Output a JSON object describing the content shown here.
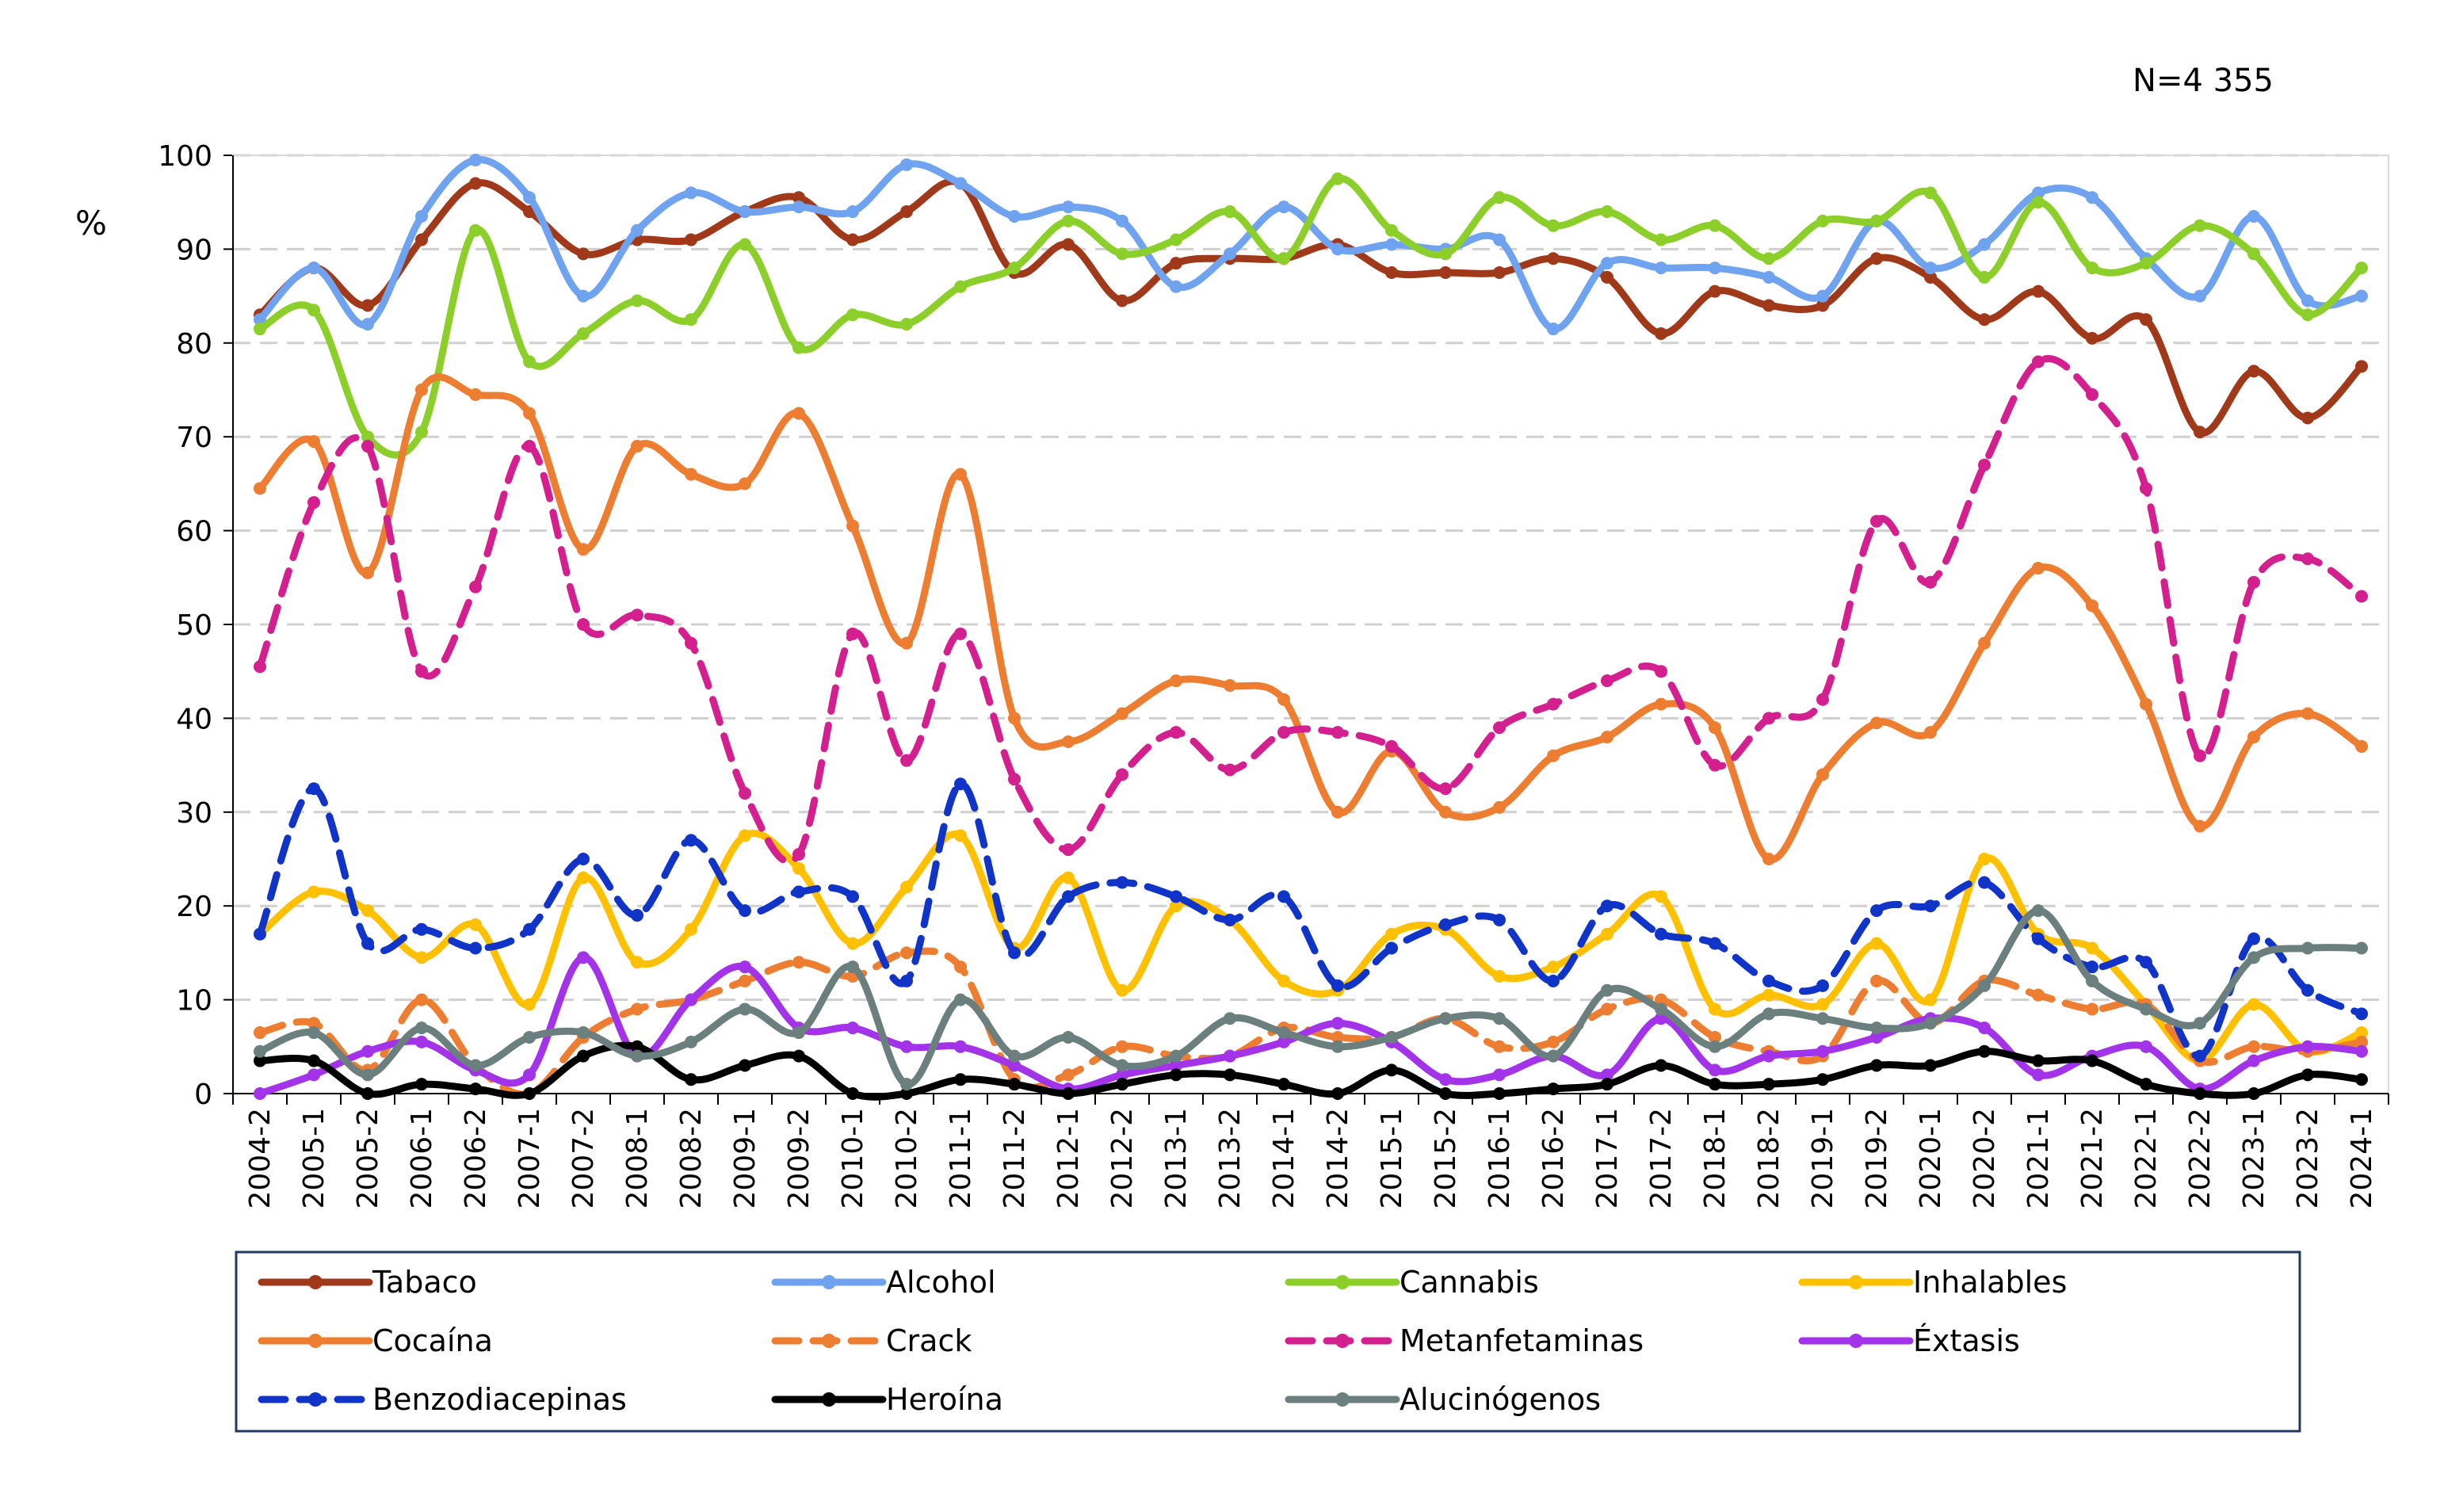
{
  "chart_data": {
    "type": "line",
    "annotation": "N=4 355",
    "ylabel": "%",
    "ylim": [
      0,
      100
    ],
    "yticks": [
      0,
      10,
      20,
      30,
      40,
      50,
      60,
      70,
      80,
      90,
      100
    ],
    "grid": true,
    "legend_position": "bottom",
    "categories": [
      "2004-2",
      "2005-1",
      "2005-2",
      "2006-1",
      "2006-2",
      "2007-1",
      "2007-2",
      "2008-1",
      "2008-2",
      "2009-1",
      "2009-2",
      "2010-1",
      "2010-2",
      "2011-1",
      "2011-2",
      "2012-1",
      "2012-2",
      "2013-1",
      "2013-2",
      "2014-1",
      "2014-2",
      "2015-1",
      "2015-2",
      "2016-1",
      "2016-2",
      "2017-1",
      "2017-2",
      "2018-1",
      "2018-2",
      "2019-1",
      "2019-2",
      "2020-1",
      "2020-2",
      "2021-1",
      "2021-2",
      "2022-1",
      "2022-2",
      "2023-1",
      "2023-2",
      "2024-1"
    ],
    "series": [
      {
        "name": "Tabaco",
        "color": "#a0391a",
        "dash": "solid",
        "values": [
          83,
          88,
          84,
          91,
          97,
          94,
          89.5,
          91,
          91,
          94,
          95.5,
          91,
          94,
          97,
          87.5,
          90.5,
          84.5,
          88.5,
          89,
          89,
          90.5,
          87.5,
          87.5,
          87.5,
          89,
          87,
          81,
          85.5,
          84,
          84,
          89,
          87,
          82.5,
          85.5,
          80.5,
          82.5,
          70.5,
          77,
          72,
          77.5
        ]
      },
      {
        "name": "Alcohol",
        "color": "#6fa3ef",
        "dash": "solid",
        "values": [
          82.5,
          88,
          82,
          93.5,
          99.5,
          95.5,
          85,
          92,
          96,
          94,
          94.5,
          94,
          99,
          97,
          93.5,
          94.5,
          93,
          86,
          89.5,
          94.5,
          90,
          90.5,
          90,
          91,
          81.5,
          88.5,
          88,
          88,
          87,
          85,
          93,
          88,
          90.5,
          96,
          95.5,
          89,
          85,
          93.5,
          84.5,
          85
        ]
      },
      {
        "name": "Cannabis",
        "color": "#8ccf2a",
        "dash": "solid",
        "values": [
          81.5,
          83.5,
          70,
          70.5,
          92,
          78,
          81,
          84.5,
          82.5,
          90.5,
          79.5,
          83,
          82,
          86,
          88,
          93,
          89.5,
          91,
          94,
          89,
          97.5,
          92,
          89.5,
          95.5,
          92.5,
          94,
          91,
          92.5,
          89,
          93,
          93,
          96,
          87,
          95,
          88,
          88.5,
          92.5,
          89.5,
          83,
          88
        ]
      },
      {
        "name": "Inhalables",
        "color": "#ffc000",
        "dash": "solid",
        "values": [
          17,
          21.5,
          19.5,
          14.5,
          18,
          9.5,
          23,
          14,
          17.5,
          27.5,
          24,
          16,
          22,
          27.5,
          15.5,
          23,
          11,
          20,
          18.5,
          12,
          11,
          17,
          17.5,
          12.5,
          13.5,
          17,
          21,
          9,
          10.5,
          9.5,
          16,
          10,
          25,
          17,
          15.5,
          9.5,
          3.5,
          9.5,
          4.5,
          6.5
        ]
      },
      {
        "name": "Cocaína",
        "color": "#ed7d31",
        "dash": "solid",
        "values": [
          64.5,
          69.5,
          55.5,
          75,
          74.5,
          72.5,
          58,
          69,
          66,
          65,
          72.5,
          60.5,
          48,
          66,
          40,
          37.5,
          40.5,
          44,
          43.5,
          42,
          30,
          36.5,
          30,
          30.5,
          36,
          38,
          41.5,
          39,
          25,
          34,
          39.5,
          38.5,
          48,
          56,
          52,
          41.5,
          28.5,
          38,
          40.5,
          37
        ]
      },
      {
        "name": "Crack",
        "color": "#ed7d31",
        "dash": "dashed",
        "values": [
          6.5,
          7.5,
          2.5,
          10,
          3,
          0,
          6,
          9,
          10,
          12,
          14,
          12.5,
          15,
          13.5,
          1.5,
          2,
          5,
          4,
          4,
          7,
          6,
          6,
          8,
          5,
          5.5,
          9,
          10,
          6,
          4.5,
          4,
          12,
          7.5,
          12,
          10.5,
          9,
          9.5,
          3.5,
          5,
          4.5,
          5.5
        ]
      },
      {
        "name": "Metanfetaminas",
        "color": "#d4208f",
        "dash": "dashed",
        "values": [
          45.5,
          63,
          69,
          45,
          54,
          69,
          50,
          51,
          48,
          32,
          25.5,
          49,
          35.5,
          49,
          33.5,
          26,
          34,
          38.5,
          34.5,
          38.5,
          38.5,
          37,
          32.5,
          39,
          41.5,
          44,
          45,
          35,
          40,
          42,
          61,
          54.5,
          67,
          78,
          74.5,
          64.5,
          36,
          54.5,
          57,
          53
        ]
      },
      {
        "name": "Éxtasis",
        "color": "#a233e8",
        "dash": "solid",
        "values": [
          0,
          2,
          4.5,
          5.5,
          2.5,
          2,
          14.5,
          4,
          10,
          13.5,
          7,
          7,
          5,
          5,
          3,
          0.5,
          2,
          3,
          4,
          5.5,
          7.5,
          5.5,
          1.5,
          2,
          4,
          2,
          8,
          2.5,
          4,
          4.5,
          6,
          8,
          7,
          2,
          4,
          5,
          0.5,
          3.5,
          5,
          4.5
        ]
      },
      {
        "name": "Benzodiacepinas",
        "color": "#1034c8",
        "dash": "dashed",
        "values": [
          17,
          32.5,
          16,
          17.5,
          15.5,
          17.5,
          25,
          19,
          27,
          19.5,
          21.5,
          21,
          12,
          33,
          15,
          21,
          22.5,
          21,
          18.5,
          21,
          11.5,
          15.5,
          18,
          18.5,
          12,
          20,
          17,
          16,
          12,
          11.5,
          19.5,
          20,
          22.5,
          16.5,
          13.5,
          14,
          4,
          16.5,
          11,
          8.5
        ]
      },
      {
        "name": "Heroína",
        "color": "#000000",
        "dash": "solid",
        "values": [
          3.5,
          3.5,
          0,
          1,
          0.5,
          0,
          4,
          5,
          1.5,
          3,
          4,
          0,
          0,
          1.5,
          1,
          0,
          1,
          2,
          2,
          1,
          0,
          2.5,
          0,
          0,
          0.5,
          1,
          3,
          1,
          1,
          1.5,
          3,
          3,
          4.5,
          3.5,
          3.5,
          1,
          0,
          0,
          2,
          1.5
        ]
      },
      {
        "name": "Alucinógenos",
        "color": "#6b7f7e",
        "dash": "solid",
        "values": [
          4.5,
          6.5,
          2,
          7,
          3,
          6,
          6.5,
          4,
          5.5,
          9,
          6.5,
          13.5,
          1,
          10,
          4,
          6,
          3,
          4,
          8,
          6.5,
          5,
          6,
          8,
          8,
          4,
          11,
          9,
          5,
          8.5,
          8,
          7,
          7.5,
          11.5,
          19.5,
          12,
          9,
          7.5,
          14.5,
          15.5,
          15.5
        ]
      }
    ]
  }
}
